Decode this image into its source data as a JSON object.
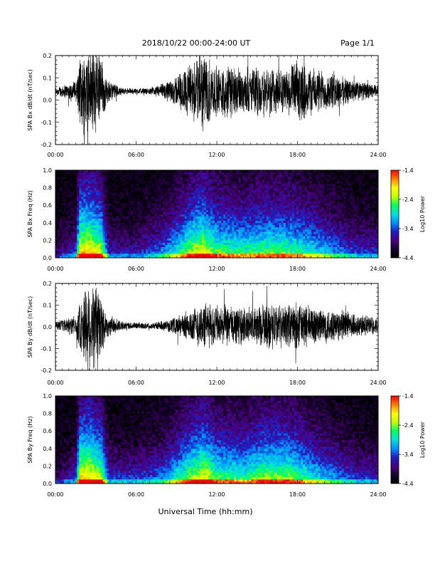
{
  "header": {
    "title": "2018/10/22  00:00-24:00 UT",
    "page": "Page 1/1"
  },
  "footer": {
    "xlabel": "Universal Time (hh:mm)"
  },
  "colors": {
    "trace": "#000000",
    "colormap": [
      "#000000",
      "#1a0030",
      "#4a0080",
      "#2020c0",
      "#0090ff",
      "#00e0e0",
      "#00ff60",
      "#c0ff00",
      "#ffff00",
      "#ff8000",
      "#ff0000"
    ]
  },
  "chart_data": [
    {
      "type": "line",
      "ylabel": "SPA Bx dB/dt (nT/sec)",
      "xlim": [
        0,
        24
      ],
      "ylim": [
        -0.2,
        0.2
      ],
      "x_ticks": [
        "00:00",
        "06:00",
        "12:00",
        "18:00",
        "24:00"
      ],
      "y_ticks": [
        "0.2",
        "0.1",
        "0.0",
        "-0.1",
        "-0.2"
      ],
      "baseline": 0.04,
      "envelope_knots": [
        [
          0,
          0.02
        ],
        [
          1.5,
          0.05
        ],
        [
          2.0,
          0.2
        ],
        [
          2.5,
          0.25
        ],
        [
          3.3,
          0.22
        ],
        [
          3.8,
          0.06
        ],
        [
          5,
          0.015
        ],
        [
          7,
          0.015
        ],
        [
          8.5,
          0.05
        ],
        [
          10,
          0.14
        ],
        [
          11,
          0.2
        ],
        [
          12,
          0.12
        ],
        [
          13,
          0.14
        ],
        [
          14,
          0.1
        ],
        [
          15,
          0.12
        ],
        [
          16,
          0.13
        ],
        [
          17,
          0.1
        ],
        [
          18,
          0.15
        ],
        [
          19,
          0.12
        ],
        [
          21,
          0.08
        ],
        [
          22.5,
          0.05
        ],
        [
          24,
          0.03
        ]
      ]
    },
    {
      "type": "heatmap",
      "ylabel": "SPA Bx Freq (Hz)",
      "xlim": [
        0,
        24
      ],
      "ylim": [
        0,
        1.0
      ],
      "x_ticks": [
        "00:00",
        "06:00",
        "12:00",
        "18:00",
        "24:00"
      ],
      "y_ticks": [
        "1.0",
        "0.8",
        "0.6",
        "0.4",
        "0.2",
        "0.0"
      ],
      "colorbar": {
        "label": "Log10 Power",
        "ticks": [
          "-1.4",
          "-2.4",
          "-3.4",
          "-4.4"
        ],
        "range": [
          -4.4,
          -1.4
        ]
      },
      "activity_knots": [
        [
          0,
          0.2
        ],
        [
          1.5,
          0.35
        ],
        [
          1.8,
          0.9
        ],
        [
          2.6,
          0.9
        ],
        [
          3.4,
          0.8
        ],
        [
          4,
          0.3
        ],
        [
          6,
          0.3
        ],
        [
          8,
          0.45
        ],
        [
          10,
          0.75
        ],
        [
          11,
          0.85
        ],
        [
          12,
          0.7
        ],
        [
          14,
          0.65
        ],
        [
          15.5,
          0.7
        ],
        [
          17,
          0.7
        ],
        [
          18,
          0.65
        ],
        [
          19,
          0.6
        ],
        [
          21,
          0.45
        ],
        [
          22.5,
          0.35
        ],
        [
          24,
          0.35
        ]
      ]
    },
    {
      "type": "line",
      "ylabel": "SPA By dB/dt (nT/sec)",
      "xlim": [
        0,
        24
      ],
      "ylim": [
        -0.2,
        0.2
      ],
      "x_ticks": [
        "00:00",
        "06:00",
        "12:00",
        "18:00",
        "24:00"
      ],
      "y_ticks": [
        "0.2",
        "0.1",
        "0.0",
        "-0.1",
        "-0.2"
      ],
      "baseline": 0.005,
      "envelope_knots": [
        [
          0,
          0.02
        ],
        [
          1.5,
          0.05
        ],
        [
          2.0,
          0.16
        ],
        [
          2.5,
          0.25
        ],
        [
          3.3,
          0.2
        ],
        [
          3.8,
          0.06
        ],
        [
          5,
          0.02
        ],
        [
          7,
          0.015
        ],
        [
          8.5,
          0.03
        ],
        [
          10,
          0.08
        ],
        [
          11,
          0.12
        ],
        [
          12,
          0.1
        ],
        [
          13,
          0.1
        ],
        [
          14,
          0.09
        ],
        [
          15,
          0.1
        ],
        [
          16,
          0.12
        ],
        [
          17,
          0.1
        ],
        [
          18,
          0.12
        ],
        [
          19,
          0.1
        ],
        [
          21,
          0.08
        ],
        [
          22.5,
          0.06
        ],
        [
          24,
          0.04
        ]
      ]
    },
    {
      "type": "heatmap",
      "ylabel": "SPA By Freq (Hz)",
      "xlim": [
        0,
        24
      ],
      "ylim": [
        0,
        1.0
      ],
      "x_ticks": [
        "00:00",
        "06:00",
        "12:00",
        "18:00",
        "24:00"
      ],
      "y_ticks": [
        "1.0",
        "0.8",
        "0.6",
        "0.4",
        "0.2",
        "0.0"
      ],
      "colorbar": {
        "label": "Log10 Power",
        "ticks": [
          "-1.4",
          "-2.4",
          "-3.4",
          "-4.4"
        ],
        "range": [
          -4.4,
          -1.4
        ]
      },
      "activity_knots": [
        [
          0,
          0.2
        ],
        [
          1.5,
          0.35
        ],
        [
          1.8,
          0.9
        ],
        [
          2.6,
          0.9
        ],
        [
          3.4,
          0.8
        ],
        [
          4,
          0.35
        ],
        [
          6,
          0.35
        ],
        [
          8,
          0.45
        ],
        [
          10,
          0.75
        ],
        [
          11,
          0.85
        ],
        [
          12,
          0.7
        ],
        [
          14,
          0.65
        ],
        [
          15.5,
          0.75
        ],
        [
          17,
          0.75
        ],
        [
          18,
          0.7
        ],
        [
          19,
          0.6
        ],
        [
          21,
          0.45
        ],
        [
          22.5,
          0.35
        ],
        [
          24,
          0.35
        ]
      ]
    }
  ]
}
